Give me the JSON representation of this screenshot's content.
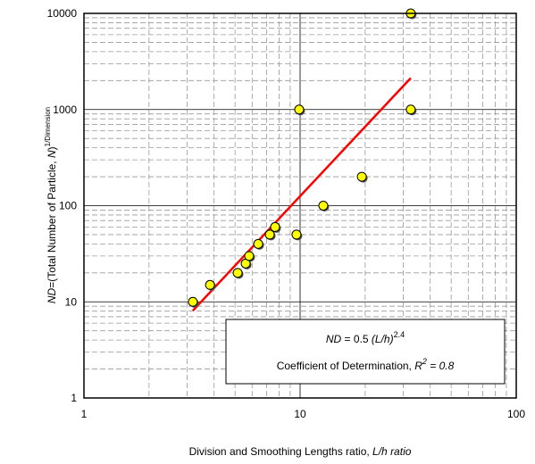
{
  "chart_data": {
    "type": "scatter",
    "log_x": true,
    "log_y": true,
    "grid": true,
    "x": [
      3.19,
      3.83,
      5.14,
      5.6,
      5.81,
      6.4,
      7.24,
      7.66,
      9.62,
      9.9,
      12.8,
      19.3,
      32.5,
      32.5
    ],
    "series": [
      {
        "color": "#ffff00",
        "values": [
          10,
          15,
          20,
          25,
          30,
          40,
          50,
          60,
          50,
          1000,
          100,
          200,
          1000,
          10000
        ]
      }
    ],
    "xlim": [
      1,
      100
    ],
    "xticks": [
      1,
      10,
      100
    ],
    "xminor": [
      2,
      3,
      4,
      5,
      6,
      7,
      8,
      9,
      20,
      30,
      40,
      50,
      60,
      70,
      80,
      90
    ],
    "ylim": [
      1,
      10000
    ],
    "yticks": [
      1,
      10,
      100,
      1000,
      10000
    ],
    "yminor": [
      2,
      3,
      4,
      5,
      6,
      7,
      8,
      9,
      20,
      30,
      40,
      50,
      60,
      70,
      80,
      90,
      200,
      300,
      400,
      500,
      600,
      700,
      800,
      900,
      2000,
      3000,
      4000,
      5000,
      6000,
      7000,
      8000,
      9000
    ],
    "fit": {
      "color": "#ff0000",
      "a": 0.5,
      "b": 2.4
    },
    "xlabel": {
      "text": "Division and Smoothing Lengths ratio, ",
      "italic": "L/h ratio"
    },
    "ylabel": {
      "italic1": "ND",
      "text1": "=(Total Number of Particle, ",
      "italic2": "N",
      "text2": ")",
      "sup": "1/Dimension"
    },
    "annotation": {
      "eq_lhs": "ND",
      "eq_mid": " = ",
      "eq_var": "(L/h)",
      "r2_text": "Coefficient of Determination, ",
      "r2_sym": "R",
      "r2_sup": "2",
      "r2_val": " = 0.8"
    }
  }
}
